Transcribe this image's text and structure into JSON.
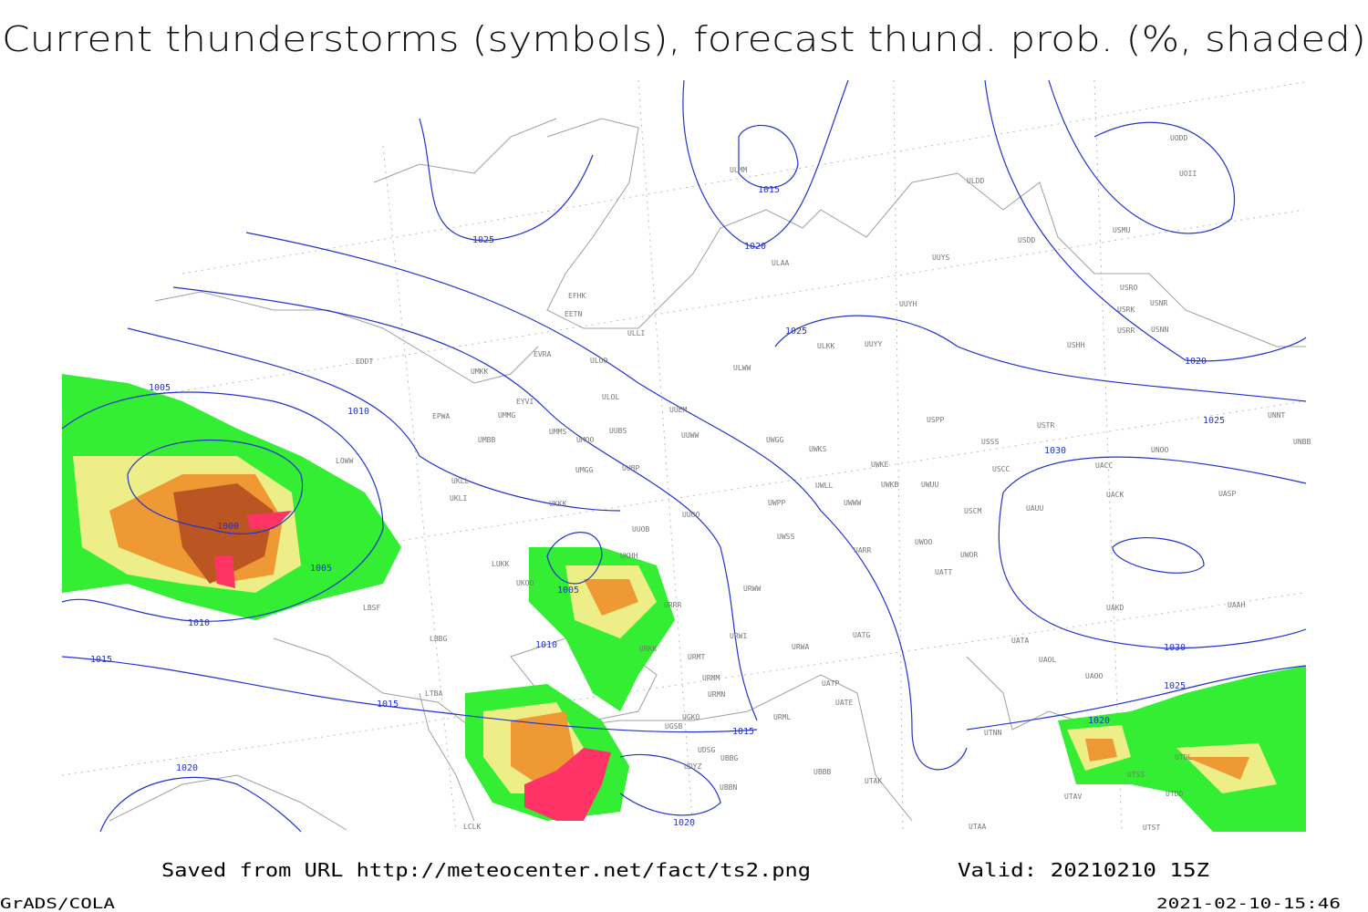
{
  "header": {
    "title": "Current thunderstorms (symbols), forecast thund. prob. (%, shaded)"
  },
  "map": {
    "isobar_labels": [
      1025,
      1015,
      1020,
      1025,
      1020,
      1025,
      1030,
      1005,
      1010,
      1000,
      1005,
      1005,
      1010,
      1010,
      1015,
      1015,
      1020,
      1015,
      1020,
      1020,
      1025,
      1030
    ],
    "stations": [
      "ULMM",
      "ULDD",
      "UUYS",
      "ULAA",
      "EFHK",
      "EETN",
      "ULLI",
      "UUYH",
      "ULKK",
      "UUYY",
      "USHH",
      "UODD",
      "UOII",
      "USMU",
      "USDD",
      "USRO",
      "USRK",
      "USNR",
      "USRR",
      "USNN",
      "EVRA",
      "ULOO",
      "ULWW",
      "EDDT",
      "UMKK",
      "EYVI",
      "ULOL",
      "UUEM",
      "EPWA",
      "UMMG",
      "USPP",
      "USTR",
      "UNNT",
      "UMMS",
      "UMOO",
      "UUBS",
      "UUWW",
      "UWGG",
      "UWKS",
      "USSS",
      "UNOO",
      "UNBB",
      "UMBB",
      "UWKE",
      "UACC",
      "USCC",
      "UWKB",
      "UWUU",
      "UWLL",
      "UACK",
      "UASP",
      "UWWW",
      "UWPP",
      "UKLL",
      "UKLI",
      "UKKK",
      "UUBP",
      "UMGG",
      "UUOO",
      "USCM",
      "UAUU",
      "UUOB",
      "UWSS",
      "UWOO",
      "UWOR",
      "UARR",
      "UATT",
      "UKHH",
      "LUKK",
      "UKOO",
      "URWW",
      "URRR",
      "URWI",
      "UATG",
      "URKK",
      "URMT",
      "URWA",
      "UATA",
      "UAOL",
      "UAOO",
      "UAKD",
      "UAAH",
      "LBSF",
      "LBBG",
      "UGSB",
      "URMM",
      "URMN",
      "UATP",
      "UATE",
      "URML",
      "UGKO",
      "UDSG",
      "UBBG",
      "UDYZ",
      "UBBB",
      "UBBN",
      "UTAK",
      "UTNN",
      "UTAV",
      "UTSS",
      "UTDD",
      "UTAA",
      "UTST",
      "UTDL",
      "LTBA",
      "LCLK",
      "LOWW"
    ]
  },
  "footer": {
    "source": "Saved from URL http://meteocenter.net/fact/ts2.png",
    "valid": "Valid: 20210210 15Z",
    "software": "GrADS/COLA",
    "timestamp": "2021-02-10-15:46"
  }
}
